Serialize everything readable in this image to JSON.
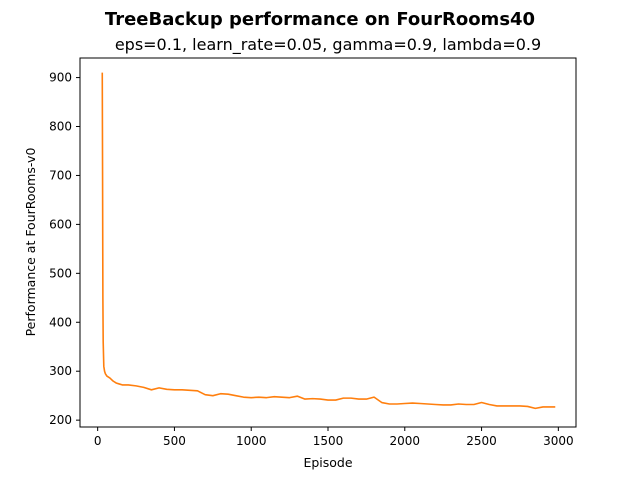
{
  "chart_data": {
    "type": "line",
    "title": "TreeBackup performance on FourRooms40",
    "subtitle": "eps=0.1, learn_rate=0.05, gamma=0.9, lambda=0.9",
    "xlabel": "Episode",
    "ylabel": "Performance at FourRooms-v0",
    "xlim": [
      -115,
      3115
    ],
    "ylim": [
      186,
      940
    ],
    "xticks": [
      0,
      500,
      1000,
      1500,
      2000,
      2500,
      3000
    ],
    "yticks": [
      200,
      300,
      400,
      500,
      600,
      700,
      800,
      900
    ],
    "grid": false,
    "series": [
      {
        "color": "#ff7f0e",
        "x": [
          30,
          32,
          34,
          36,
          40,
          45,
          50,
          60,
          70,
          80,
          90,
          100,
          120,
          140,
          160,
          180,
          200,
          250,
          300,
          350,
          400,
          450,
          500,
          550,
          600,
          650,
          700,
          750,
          800,
          850,
          900,
          950,
          1000,
          1050,
          1100,
          1150,
          1200,
          1250,
          1300,
          1350,
          1400,
          1450,
          1500,
          1550,
          1600,
          1650,
          1700,
          1750,
          1800,
          1850,
          1900,
          1950,
          2000,
          2050,
          2100,
          2150,
          2200,
          2250,
          2300,
          2350,
          2400,
          2450,
          2500,
          2550,
          2600,
          2650,
          2700,
          2750,
          2800,
          2850,
          2900,
          2950,
          2980
        ],
        "y": [
          910,
          700,
          450,
          360,
          310,
          300,
          295,
          290,
          288,
          286,
          283,
          280,
          276,
          274,
          272,
          272,
          272,
          270,
          267,
          262,
          266,
          263,
          262,
          262,
          261,
          260,
          252,
          250,
          254,
          253,
          250,
          247,
          246,
          247,
          246,
          248,
          247,
          246,
          249,
          243,
          244,
          243,
          241,
          241,
          245,
          245,
          243,
          243,
          247,
          236,
          233,
          233,
          234,
          235,
          234,
          233,
          232,
          231,
          231,
          233,
          232,
          232,
          236,
          232,
          229,
          229,
          229,
          229,
          228,
          224,
          227,
          227,
          227
        ]
      }
    ]
  }
}
